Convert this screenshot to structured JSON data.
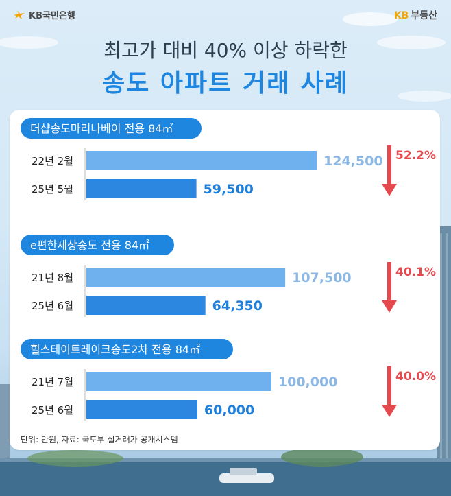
{
  "brand": {
    "bank_name": "KB국민은행",
    "service_prefix": "KB",
    "service_name": "부동산"
  },
  "header": {
    "title_line1": "최고가 대비 40% 이상 하락한",
    "title_line2": "송도 아파트 거래 사례"
  },
  "footnote": "단위: 만원, 자료: 국토부 실거래가 공개시스템",
  "colors": {
    "accent_blue": "#1f86e0",
    "bar_peak": "#6fb0ee",
    "bar_recent": "#2b87e0",
    "label_peak": "#8cb8e6",
    "label_recent": "#1f7fdc",
    "decline_red": "#e5484d"
  },
  "chart_data": {
    "type": "bar",
    "orientation": "horizontal",
    "unit": "만원",
    "xlim": [
      0,
      130000
    ],
    "groups": [
      {
        "name": "더샵송도마리나베이 전용 84㎡",
        "categories": [
          "22년 2월",
          "25년 5월"
        ],
        "values": [
          124500,
          59500
        ],
        "value_labels": [
          "124,500",
          "59,500"
        ],
        "decline_label": "52.2%"
      },
      {
        "name": "e편한세상송도 전용 84㎡",
        "categories": [
          "21년 8월",
          "25년 6월"
        ],
        "values": [
          107500,
          64350
        ],
        "value_labels": [
          "107,500",
          "64,350"
        ],
        "decline_label": "40.1%"
      },
      {
        "name": "힐스테이트레이크송도2차 전용 84㎡",
        "categories": [
          "21년 7월",
          "25년 6월"
        ],
        "values": [
          100000,
          60000
        ],
        "value_labels": [
          "100,000",
          "60,000"
        ],
        "decline_label": "40.0%"
      }
    ]
  }
}
